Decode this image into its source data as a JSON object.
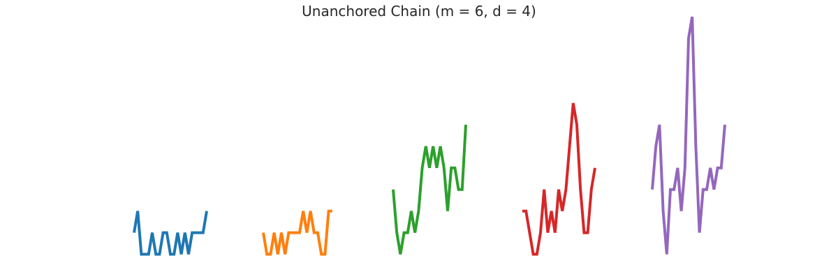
{
  "chart_data": {
    "type": "line",
    "title": "Unanchored Chain (m = 6, d = 4)",
    "axes_visible": false,
    "grid": false,
    "legend": "none",
    "xlabel": "",
    "ylabel": "",
    "ylim": [
      -0.5,
      11.0
    ],
    "series": [
      {
        "color": "#1f77b4",
        "values": [
          1,
          2,
          0,
          0,
          0,
          1,
          0,
          0,
          1,
          1,
          0,
          0,
          1,
          0,
          1,
          0,
          1,
          1,
          1,
          1,
          2
        ]
      },
      {
        "color": "#ff7f0e",
        "values": [
          1,
          0,
          0,
          1,
          0,
          1,
          0,
          1,
          1,
          1,
          1,
          2,
          1,
          2,
          1,
          1,
          0,
          0,
          2,
          2
        ]
      },
      {
        "color": "#2ca02c",
        "values": [
          3,
          1,
          0,
          1,
          1,
          2,
          1,
          2,
          4,
          5,
          4,
          5,
          4,
          5,
          4,
          2,
          4,
          4,
          3,
          3,
          6
        ]
      },
      {
        "color": "#d62728",
        "values": [
          2,
          2,
          1,
          0,
          0,
          1,
          3,
          1,
          2,
          1,
          3,
          2,
          3,
          5,
          7,
          6,
          3,
          1,
          1,
          3,
          4
        ]
      },
      {
        "color": "#9467bd",
        "values": [
          3,
          5,
          6,
          2,
          0,
          3,
          3,
          4,
          2,
          4,
          10,
          11,
          5,
          1,
          3,
          3,
          4,
          3,
          4,
          4,
          6
        ]
      }
    ]
  }
}
